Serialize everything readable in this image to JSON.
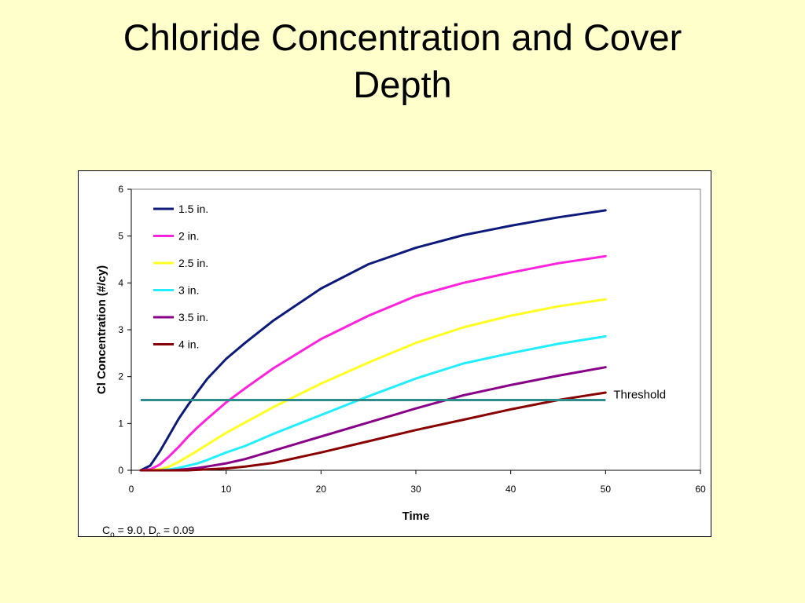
{
  "slide": {
    "title_line1": "Chloride Concentration and Cover",
    "title_line2": "Depth"
  },
  "chart_data": {
    "type": "line",
    "title": "",
    "xlabel": "Time",
    "ylabel": "Cl Concentration (#/cy)",
    "xlim": [
      0,
      60
    ],
    "ylim": [
      0,
      6
    ],
    "xticks": [
      0,
      10,
      20,
      30,
      40,
      50,
      60
    ],
    "yticks": [
      0,
      1,
      2,
      3,
      4,
      5,
      6
    ],
    "grid": false,
    "legend_position": "top-left",
    "x": [
      1,
      2,
      3,
      4,
      5,
      6,
      7,
      8,
      10,
      12,
      15,
      20,
      25,
      30,
      35,
      40,
      45,
      50
    ],
    "series": [
      {
        "name": "1.5 in.",
        "color": "#0D1A7A",
        "values": [
          0.0,
          0.1,
          0.4,
          0.75,
          1.1,
          1.4,
          1.68,
          1.95,
          2.38,
          2.72,
          3.2,
          3.88,
          4.4,
          4.75,
          5.02,
          5.22,
          5.4,
          5.55
        ]
      },
      {
        "name": "2 in.",
        "color": "#FF22DD",
        "values": [
          0.0,
          0.02,
          0.12,
          0.3,
          0.5,
          0.72,
          0.92,
          1.1,
          1.45,
          1.75,
          2.18,
          2.8,
          3.3,
          3.72,
          4.0,
          4.22,
          4.42,
          4.57
        ]
      },
      {
        "name": "2.5 in.",
        "color": "#FFFF22",
        "values": [
          0.0,
          0.0,
          0.02,
          0.08,
          0.18,
          0.3,
          0.42,
          0.55,
          0.8,
          1.02,
          1.35,
          1.85,
          2.3,
          2.72,
          3.05,
          3.3,
          3.5,
          3.65
        ]
      },
      {
        "name": "3 in.",
        "color": "#22EEFF",
        "values": [
          0.0,
          0.0,
          0.0,
          0.02,
          0.05,
          0.1,
          0.15,
          0.22,
          0.38,
          0.52,
          0.78,
          1.18,
          1.58,
          1.96,
          2.28,
          2.5,
          2.7,
          2.86
        ]
      },
      {
        "name": "3.5 in.",
        "color": "#880088",
        "values": [
          0.0,
          0.0,
          0.0,
          0.0,
          0.01,
          0.03,
          0.05,
          0.08,
          0.15,
          0.24,
          0.42,
          0.72,
          1.02,
          1.32,
          1.6,
          1.82,
          2.02,
          2.2
        ]
      },
      {
        "name": "4 in.",
        "color": "#880000",
        "values": [
          0.0,
          0.0,
          0.0,
          0.0,
          0.0,
          0.0,
          0.01,
          0.02,
          0.04,
          0.08,
          0.16,
          0.38,
          0.62,
          0.86,
          1.08,
          1.3,
          1.5,
          1.66
        ]
      }
    ],
    "threshold": {
      "label": "Threshold",
      "value": 1.5,
      "x_range": [
        1,
        50
      ],
      "color": "#2E8B8B"
    },
    "annotation": {
      "c_main": "C",
      "c_sub": "o",
      "mid": " = 9.0, D",
      "d_sub": "c",
      "tail": " = 0.09"
    }
  }
}
